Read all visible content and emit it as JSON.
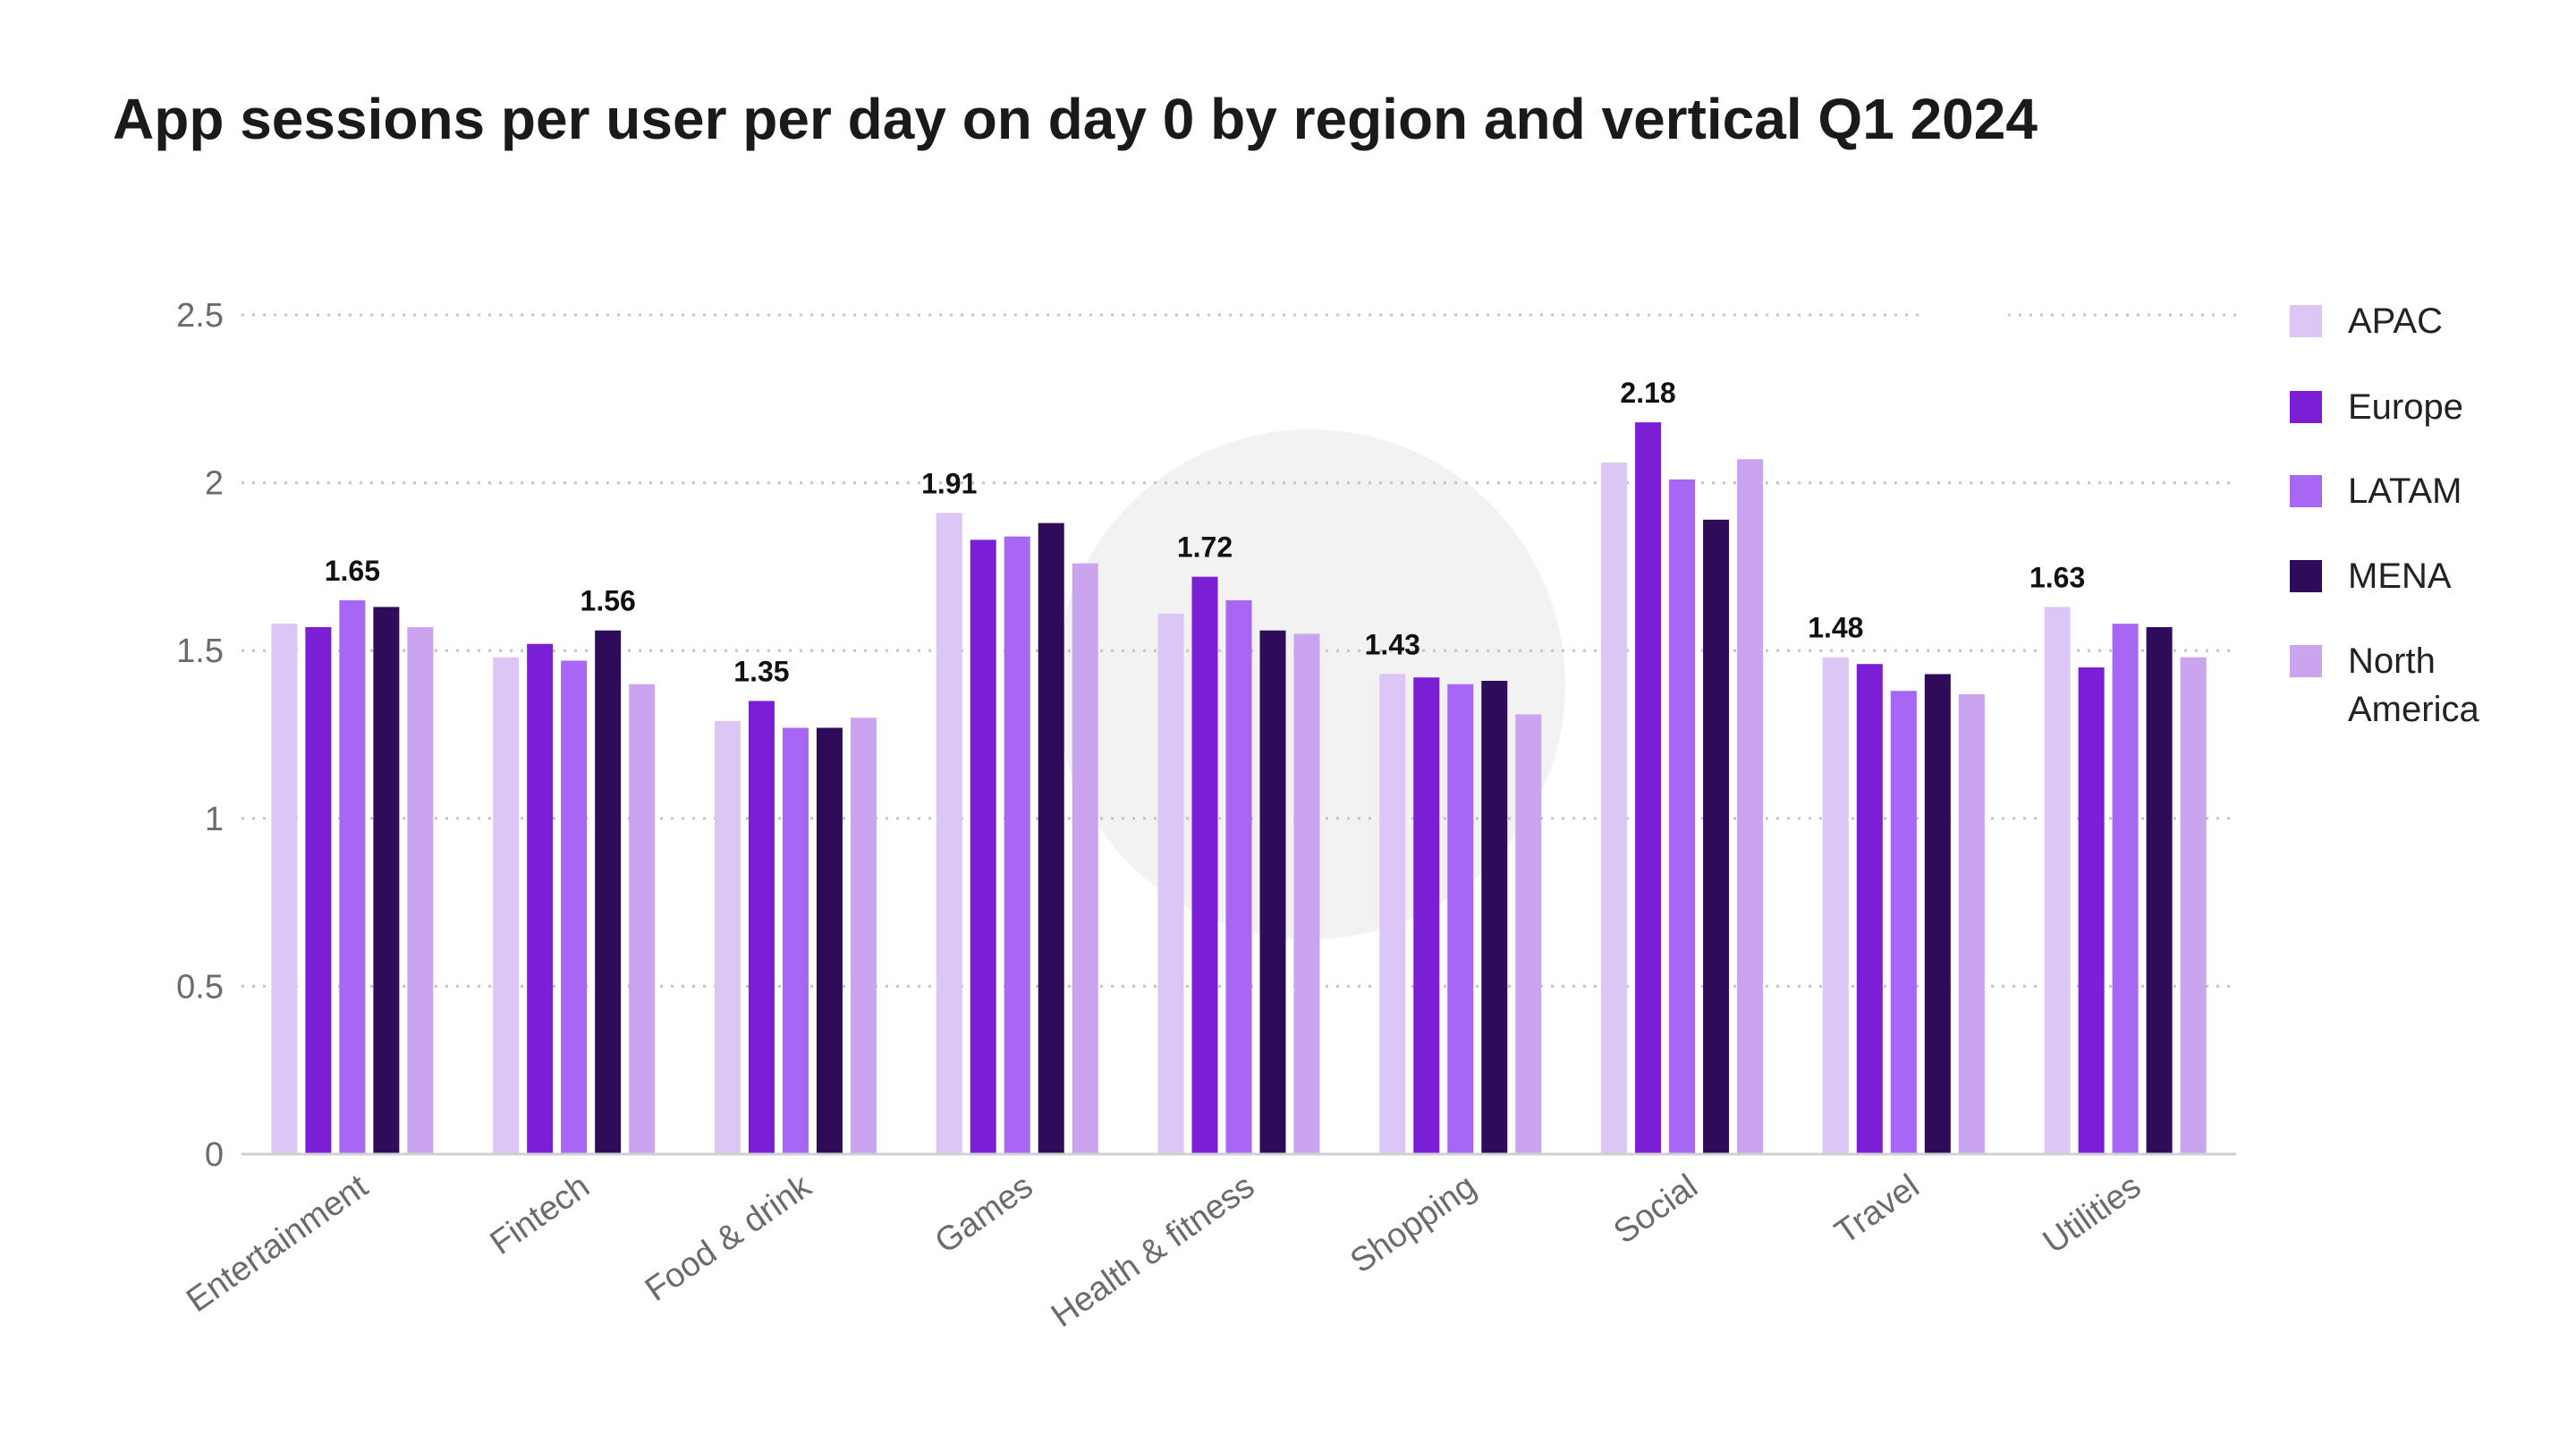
{
  "chart_data": {
    "type": "bar",
    "title": "App sessions per user per day on day 0 by region and vertical Q1 2024",
    "xlabel": "",
    "ylabel": "",
    "ylim": [
      0,
      2.5
    ],
    "y_ticks": [
      "0",
      "0.5",
      "1",
      "1.5",
      "2",
      "2.5"
    ],
    "grid": "horizontal dotted",
    "legend_position": "right",
    "categories": [
      "Entertainment",
      "Fintech",
      "Food & drink",
      "Games",
      "Health & fitness",
      "Shopping",
      "Social",
      "Travel",
      "Utilities"
    ],
    "series": [
      {
        "name": "APAC",
        "color": "#dcc6f5",
        "values": [
          1.58,
          1.48,
          1.29,
          1.91,
          1.61,
          1.43,
          2.06,
          1.48,
          1.63
        ]
      },
      {
        "name": "Europe",
        "color": "#7a1fd6",
        "values": [
          1.57,
          1.52,
          1.35,
          1.83,
          1.72,
          1.42,
          2.18,
          1.46,
          1.45
        ]
      },
      {
        "name": "LATAM",
        "color": "#a866f4",
        "values": [
          1.65,
          1.47,
          1.27,
          1.84,
          1.65,
          1.4,
          2.01,
          1.38,
          1.58
        ]
      },
      {
        "name": "MENA",
        "color": "#2f0c59",
        "values": [
          1.63,
          1.56,
          1.27,
          1.88,
          1.56,
          1.41,
          1.89,
          1.43,
          1.57
        ]
      },
      {
        "name": "North America",
        "color": "#cba4ef",
        "values": [
          1.57,
          1.4,
          1.3,
          1.76,
          1.55,
          1.31,
          2.07,
          1.37,
          1.48
        ]
      }
    ],
    "data_labels": [
      "1.65",
      "1.56",
      "1.35",
      "1.91",
      "1.72",
      "1.43",
      "2.18",
      "1.48",
      "1.63"
    ],
    "legend_labels": [
      "APAC",
      "Europe",
      "LATAM",
      "MENA",
      "North",
      "America"
    ]
  }
}
